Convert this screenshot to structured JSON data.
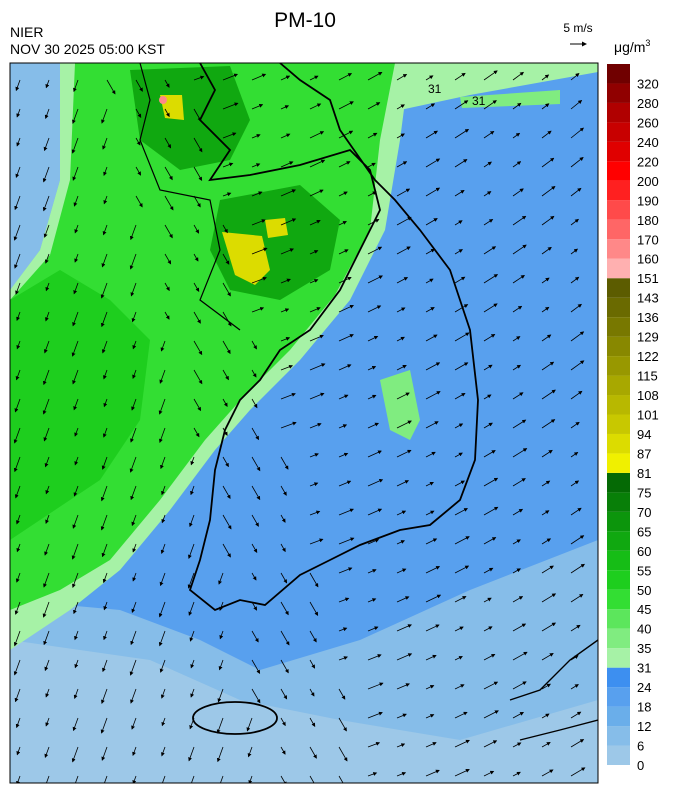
{
  "header": {
    "title": "PM-10",
    "agency": "NIER",
    "datetime": "NOV 30 2025 05:00 KST",
    "wind_scale": "5 m/s"
  },
  "legend": {
    "unit": "μg/m",
    "unit_power": "3",
    "levels": [
      0,
      6,
      12,
      18,
      24,
      31,
      35,
      40,
      45,
      50,
      55,
      60,
      65,
      70,
      75,
      81,
      87,
      94,
      101,
      108,
      115,
      122,
      129,
      136,
      143,
      151,
      160,
      170,
      180,
      190,
      200,
      220,
      240,
      260,
      280,
      320
    ],
    "colors": [
      "#9dc8e8",
      "#86bde9",
      "#6aaeea",
      "#58a0ee",
      "#3d8ff0",
      "#a6f2a6",
      "#80ec80",
      "#5ce65c",
      "#33de33",
      "#1ece1e",
      "#16bd16",
      "#10a810",
      "#0c950c",
      "#087f08",
      "#056a05",
      "#f0f000",
      "#dcdc00",
      "#c8c800",
      "#b8b800",
      "#a8a800",
      "#989800",
      "#888800",
      "#787800",
      "#6a6a00",
      "#5c5c00",
      "#ffb0b0",
      "#ff8888",
      "#ff6666",
      "#ff4a4a",
      "#ff2020",
      "#ff0000",
      "#e00000",
      "#c80000",
      "#b00000",
      "#900000",
      "#700000"
    ]
  },
  "map": {
    "contour_labels": [
      31,
      31
    ]
  }
}
